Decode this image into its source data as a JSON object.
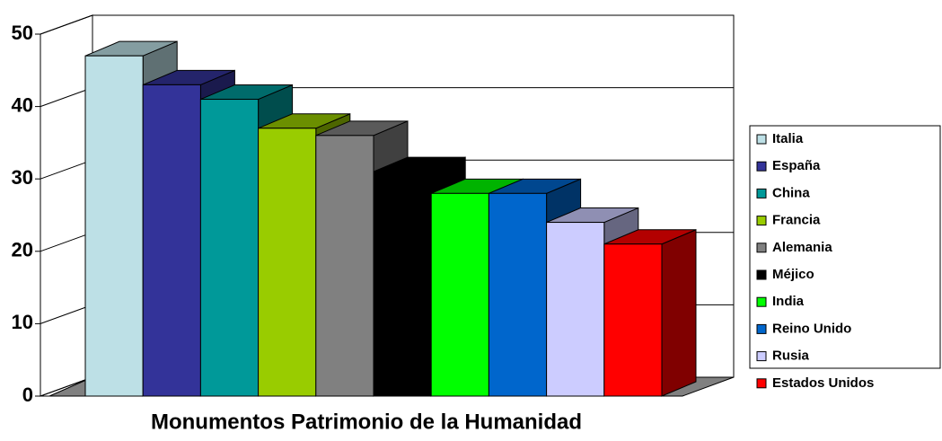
{
  "chart_data": {
    "type": "bar3d",
    "title": "Monumentos Patrimonio de la Humanidad",
    "categories": [
      "Italia",
      "España",
      "China",
      "Francia",
      "Alemania",
      "Méjico",
      "India",
      "Reino Unido",
      "Rusia",
      "Estados Unidos"
    ],
    "series": [
      {
        "name": "Monumentos",
        "values": [
          47,
          43,
          41,
          37,
          36,
          31,
          28,
          28,
          24,
          21
        ]
      }
    ],
    "colors": [
      "#bde0e6",
      "#333399",
      "#009999",
      "#99cc00",
      "#808080",
      "#000000",
      "#00ff00",
      "#0066cc",
      "#ccccff",
      "#ff0000"
    ],
    "ylim": [
      0,
      50
    ],
    "yticks": [
      0,
      10,
      20,
      30,
      40,
      50
    ],
    "grid": true,
    "legend": "right"
  }
}
